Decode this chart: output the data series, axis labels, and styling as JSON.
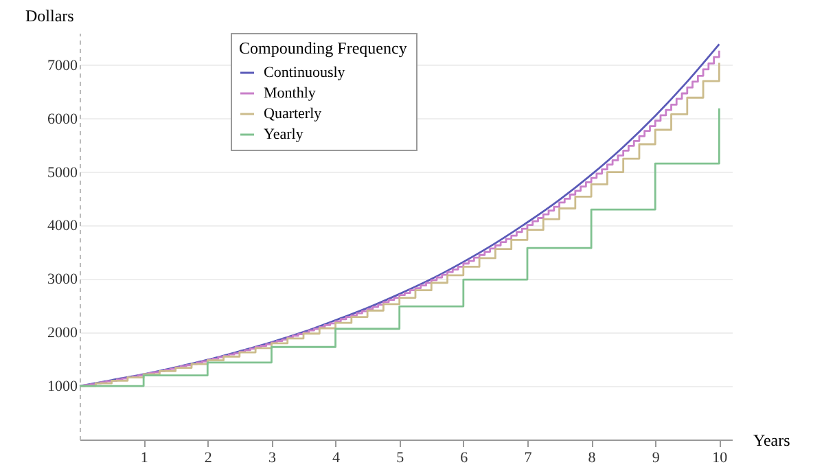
{
  "chart_data": {
    "type": "step",
    "xlabel": "Years",
    "ylabel": "Dollars",
    "legend_title": "Compounding Frequency",
    "legend": "top left",
    "grid": "y",
    "xlim": [
      0,
      10.2
    ],
    "ylim": [
      0,
      7600
    ],
    "xticks": [
      1,
      2,
      3,
      4,
      5,
      6,
      7,
      8,
      9,
      10
    ],
    "yticks": [
      1000,
      2000,
      3000,
      4000,
      5000,
      6000,
      7000
    ],
    "series": [
      {
        "name": "Continuously",
        "type": "line",
        "color": "#5a5ab8",
        "x": [
          0,
          0.5,
          1,
          1.5,
          2,
          2.5,
          3,
          3.5,
          4,
          4.5,
          5,
          5.5,
          6,
          6.5,
          7,
          7.5,
          8,
          8.5,
          9,
          9.5,
          10
        ],
        "values": [
          1000,
          1110,
          1220,
          1350,
          1490,
          1650,
          1820,
          2010,
          2230,
          2460,
          2720,
          3000,
          3320,
          3670,
          4060,
          4480,
          4950,
          5470,
          6050,
          6690,
          7390
        ]
      },
      {
        "name": "Monthly",
        "color": "#c97fc9",
        "x": [
          0,
          0.083,
          0.167,
          0.25,
          0.333,
          0.417,
          0.5,
          0.583,
          0.667,
          0.75,
          0.833,
          0.917,
          1,
          1.083,
          1.167,
          1.25,
          1.333,
          1.417,
          1.5,
          1.583,
          1.667,
          1.75,
          1.833,
          1.917,
          2,
          2.083,
          2.167,
          2.25,
          2.333,
          2.417,
          2.5,
          2.583,
          2.667,
          2.75,
          2.833,
          2.917,
          3,
          3.083,
          3.167,
          3.25,
          3.333,
          3.417,
          3.5,
          3.583,
          3.667,
          3.75,
          3.833,
          3.917,
          4,
          4.083,
          4.167,
          4.25,
          4.333,
          4.417,
          4.5,
          4.583,
          4.667,
          4.75,
          4.833,
          4.917,
          5,
          5.083,
          5.167,
          5.25,
          5.333,
          5.417,
          5.5,
          5.583,
          5.667,
          5.75,
          5.833,
          5.917,
          6,
          6.083,
          6.167,
          6.25,
          6.333,
          6.417,
          6.5,
          6.583,
          6.667,
          6.75,
          6.833,
          6.917,
          7,
          7.083,
          7.167,
          7.25,
          7.333,
          7.417,
          7.5,
          7.583,
          7.667,
          7.75,
          7.833,
          7.917,
          8,
          8.083,
          8.167,
          8.25,
          8.333,
          8.417,
          8.5,
          8.583,
          8.667,
          8.75,
          8.833,
          8.917,
          9,
          9.083,
          9.167,
          9.25,
          9.333,
          9.417,
          9.5,
          9.583,
          9.667,
          9.75,
          9.833,
          9.917,
          10
        ],
        "values": [
          1000,
          1020,
          1030,
          1050,
          1070,
          1090,
          1100,
          1120,
          1140,
          1160,
          1180,
          1200,
          1220,
          1240,
          1260,
          1280,
          1300,
          1320,
          1350,
          1370,
          1390,
          1410,
          1440,
          1460,
          1490,
          1510,
          1540,
          1560,
          1590,
          1610,
          1640,
          1670,
          1700,
          1730,
          1750,
          1780,
          1810,
          1840,
          1870,
          1910,
          1940,
          1970,
          2000,
          2040,
          2070,
          2100,
          2140,
          2170,
          2210,
          2250,
          2290,
          2320,
          2360,
          2400,
          2440,
          2480,
          2520,
          2570,
          2610,
          2650,
          2700,
          2740,
          2790,
          2830,
          2880,
          2930,
          2980,
          3030,
          3080,
          3130,
          3180,
          3230,
          3290,
          3340,
          3400,
          3450,
          3510,
          3570,
          3630,
          3690,
          3750,
          3810,
          3880,
          3940,
          4010,
          4080,
          4140,
          4210,
          4280,
          4350,
          4430,
          4500,
          4580,
          4650,
          4730,
          4810,
          4890,
          4970,
          5050,
          5140,
          5220,
          5310,
          5400,
          5490,
          5580,
          5670,
          5770,
          5860,
          5960,
          6060,
          6160,
          6260,
          6370,
          6470,
          6580,
          6690,
          6800,
          6920,
          7030,
          7150,
          7270
        ]
      },
      {
        "name": "Quarterly",
        "color": "#ccbc8c",
        "x": [
          0,
          0.25,
          0.5,
          0.75,
          1,
          1.25,
          1.5,
          1.75,
          2,
          2.25,
          2.5,
          2.75,
          3,
          3.25,
          3.5,
          3.75,
          4,
          4.25,
          4.5,
          4.75,
          5,
          5.25,
          5.5,
          5.75,
          6,
          6.25,
          6.5,
          6.75,
          7,
          7.25,
          7.5,
          7.75,
          8,
          8.25,
          8.5,
          8.75,
          9,
          9.25,
          9.5,
          9.75,
          10
        ],
        "values": [
          1000,
          1050,
          1100,
          1160,
          1220,
          1280,
          1340,
          1410,
          1480,
          1550,
          1630,
          1710,
          1800,
          1890,
          1980,
          2080,
          2180,
          2290,
          2410,
          2530,
          2650,
          2790,
          2930,
          3070,
          3230,
          3390,
          3560,
          3730,
          3920,
          4120,
          4320,
          4540,
          4770,
          5000,
          5250,
          5520,
          5790,
          6080,
          6390,
          6700,
          7040
        ]
      },
      {
        "name": "Yearly",
        "color": "#80c290",
        "x": [
          0,
          1,
          2,
          3,
          4,
          5,
          6,
          7,
          8,
          9,
          10
        ],
        "values": [
          1000,
          1200,
          1440,
          1730,
          2070,
          2490,
          2990,
          3580,
          4300,
          5160,
          6190
        ]
      }
    ]
  }
}
